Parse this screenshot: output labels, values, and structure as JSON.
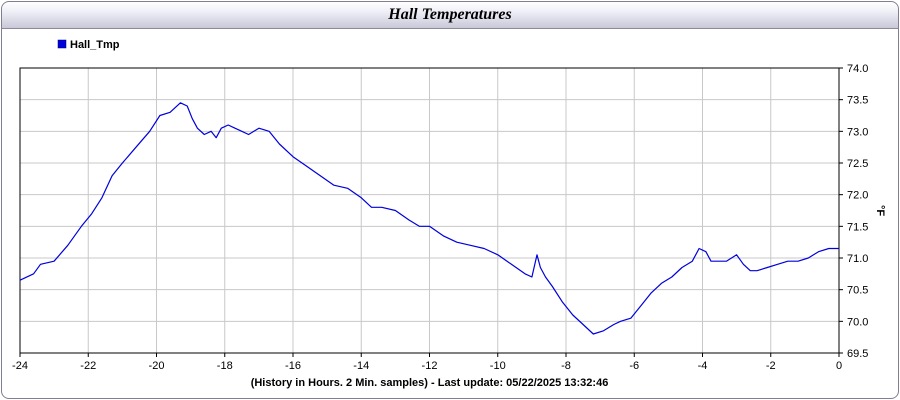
{
  "chart_data": {
    "type": "line",
    "title": "Hall Temperatures",
    "xlabel": "(History in Hours. 2 Min. samples) - Last update: 05/22/2025 13:32:46",
    "ylabel": "°F",
    "xlim": [
      -24,
      0
    ],
    "ylim": [
      69.5,
      74.0
    ],
    "x_ticks": [
      "-24",
      "-22",
      "-20",
      "-18",
      "-16",
      "-14",
      "-12",
      "-10",
      "-8",
      "-6",
      "-4",
      "-2",
      "0"
    ],
    "y_ticks": [
      "69.5",
      "70.0",
      "70.5",
      "71.0",
      "71.5",
      "72.0",
      "72.5",
      "73.0",
      "73.5",
      "74.0"
    ],
    "grid": true,
    "legend_position": "top-left",
    "colors": {
      "series": "#0000dd",
      "grid": "#c8c8c8",
      "axis": "#000000"
    },
    "series": [
      {
        "name": "Hall_Tmp",
        "x": [
          -24,
          -23.6,
          -23.4,
          -23.0,
          -22.6,
          -22.2,
          -21.9,
          -21.6,
          -21.3,
          -21.0,
          -20.6,
          -20.2,
          -19.9,
          -19.6,
          -19.3,
          -19.1,
          -18.95,
          -18.8,
          -18.6,
          -18.4,
          -18.25,
          -18.1,
          -17.9,
          -17.7,
          -17.5,
          -17.3,
          -17.0,
          -16.7,
          -16.4,
          -16.0,
          -15.6,
          -15.2,
          -14.8,
          -14.4,
          -14.0,
          -13.7,
          -13.4,
          -13.0,
          -12.6,
          -12.3,
          -12.0,
          -11.6,
          -11.2,
          -10.8,
          -10.4,
          -10.0,
          -9.6,
          -9.2,
          -9.0,
          -8.85,
          -8.75,
          -8.6,
          -8.4,
          -8.1,
          -7.8,
          -7.5,
          -7.2,
          -6.9,
          -6.6,
          -6.4,
          -6.1,
          -5.8,
          -5.5,
          -5.2,
          -4.9,
          -4.6,
          -4.3,
          -4.1,
          -3.9,
          -3.75,
          -3.6,
          -3.3,
          -3.0,
          -2.8,
          -2.6,
          -2.4,
          -2.1,
          -1.8,
          -1.5,
          -1.2,
          -0.9,
          -0.6,
          -0.3,
          0
        ],
        "y": [
          70.65,
          70.75,
          70.9,
          70.95,
          71.2,
          71.5,
          71.7,
          71.95,
          72.3,
          72.5,
          72.75,
          73.0,
          73.25,
          73.3,
          73.45,
          73.4,
          73.2,
          73.05,
          72.95,
          73.0,
          72.9,
          73.05,
          73.1,
          73.05,
          73.0,
          72.95,
          73.05,
          73.0,
          72.8,
          72.6,
          72.45,
          72.3,
          72.15,
          72.1,
          71.95,
          71.8,
          71.8,
          71.75,
          71.6,
          71.5,
          71.5,
          71.35,
          71.25,
          71.2,
          71.15,
          71.05,
          70.9,
          70.75,
          70.7,
          71.05,
          70.85,
          70.7,
          70.55,
          70.3,
          70.1,
          69.95,
          69.8,
          69.85,
          69.95,
          70.0,
          70.05,
          70.25,
          70.45,
          70.6,
          70.7,
          70.85,
          70.95,
          71.15,
          71.1,
          70.95,
          70.95,
          70.95,
          71.05,
          70.9,
          70.8,
          70.8,
          70.85,
          70.9,
          70.95,
          70.95,
          71.0,
          71.1,
          71.15,
          71.15
        ]
      }
    ]
  }
}
